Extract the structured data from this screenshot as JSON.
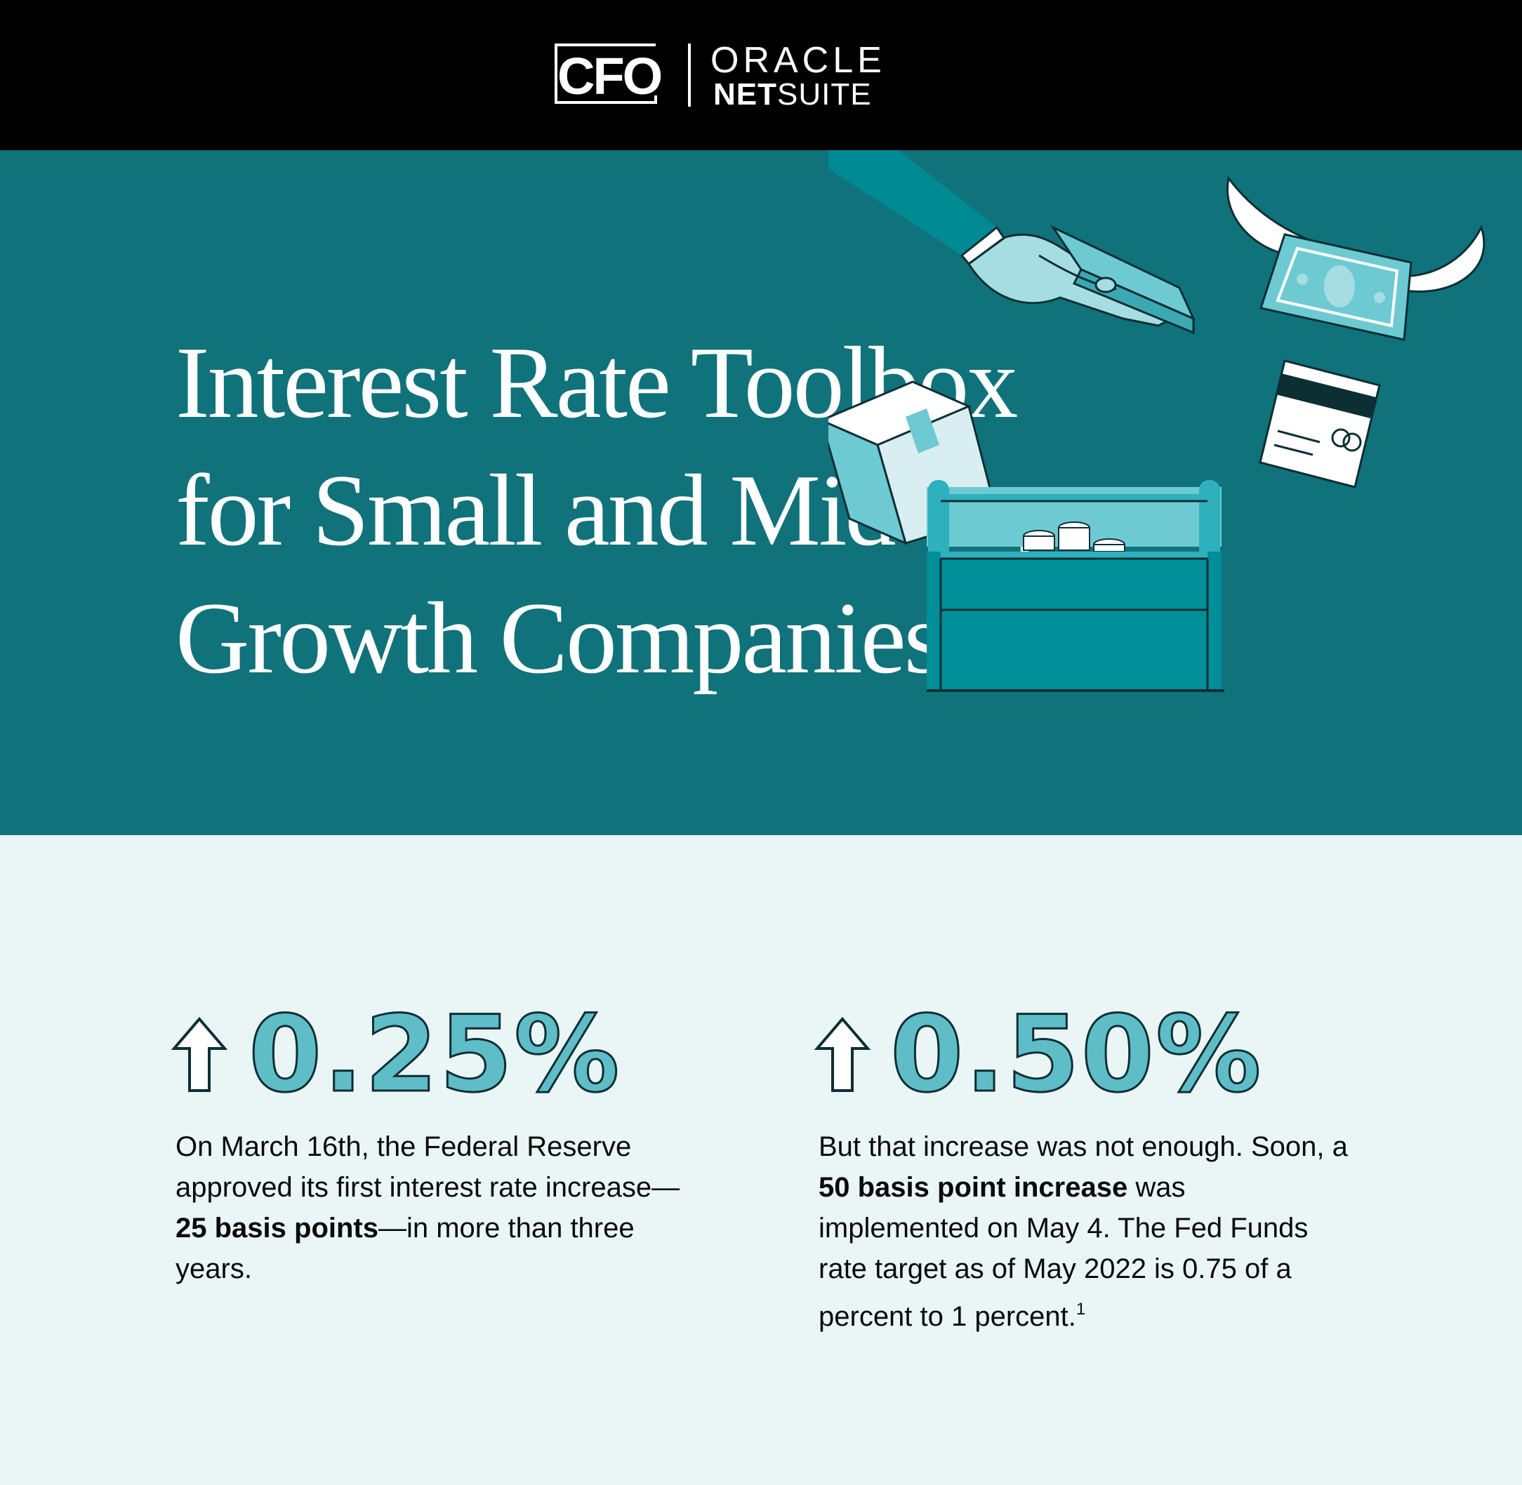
{
  "header": {
    "cfo_logo": "CFO",
    "oracle_logo": "ORACLE",
    "netsuite_logo_bold": "NET",
    "netsuite_logo_rest": "SUITE"
  },
  "hero": {
    "title_lines": [
      "Interest Rate Toolbox",
      "for Small and Mid-cap",
      "Growth Companies"
    ],
    "background_color": "#10727b"
  },
  "stats": [
    {
      "icon": "up-arrow-icon",
      "value": "0.25%",
      "desc_1": "On March 16th, the Federal Reserve approved its first interest rate increase—",
      "desc_bold": "25 basis points",
      "desc_2": "—in more than three years."
    },
    {
      "icon": "up-arrow-icon",
      "value": "0.50%",
      "desc_1": "But that increase was not enough. Soon, a ",
      "desc_bold": "50 basis point increase",
      "desc_2": " was implemented on May 4. The Fed Funds rate target as of May 2022 is 0.75 of a percent to 1 percent.",
      "footnote": "1"
    }
  ],
  "colors": {
    "accent": "#5fbdc8",
    "background": "#eaf5f5",
    "header": "#000000"
  }
}
